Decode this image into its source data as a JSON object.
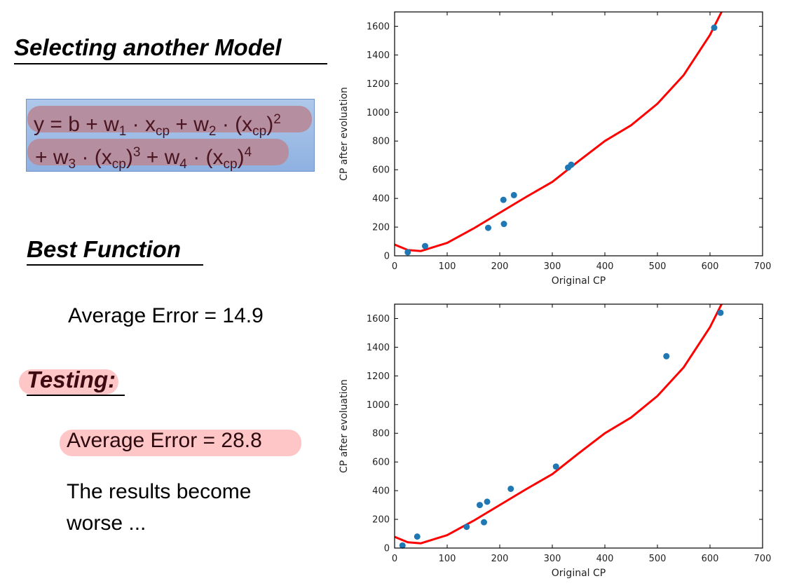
{
  "left": {
    "heading_model": "Selecting another Model",
    "formula": {
      "line1": {
        "y": "y = b + w",
        "s1": "1",
        "dot1": " · x",
        "s2": "cp",
        "plus2": " + w",
        "s3": "2",
        "dot2": " · (x",
        "s4": "cp",
        "close2": ")",
        "p2": "2"
      },
      "line2": {
        "plus3": "+ w",
        "s5": "3",
        "dot3": " · (x",
        "s6": "cp",
        "close3": ")",
        "p3": "3",
        "plus4": " + w",
        "s7": "4",
        "dot4": " · (x",
        "s8": "cp",
        "close4": ")",
        "p4": "4"
      }
    },
    "heading_best": "Best Function",
    "avg_error_train": "Average Error = 14.9",
    "heading_testing": "Testing:",
    "avg_error_test": "Average Error = 28.8",
    "result_line1": "The results become",
    "result_line2": "worse ..."
  },
  "chart_data": [
    {
      "type": "scatter",
      "title": "",
      "xlabel": "Original CP",
      "ylabel": "CP after evoluation",
      "xlim": [
        0,
        700
      ],
      "ylim": [
        0,
        1700
      ],
      "xticks": [
        0,
        100,
        200,
        300,
        400,
        500,
        600,
        700
      ],
      "yticks": [
        0,
        200,
        400,
        600,
        800,
        1000,
        1200,
        1400,
        1600
      ],
      "grid": false,
      "points": [
        [
          25,
          25
        ],
        [
          58,
          68
        ],
        [
          178,
          195
        ],
        [
          207,
          390
        ],
        [
          208,
          222
        ],
        [
          227,
          423
        ],
        [
          330,
          615
        ],
        [
          336,
          635
        ],
        [
          608,
          1590
        ]
      ],
      "curve": {
        "model": "b + w1*x + w2*x^2 + w3*x^3 + w4*x^4",
        "x": [
          0,
          25,
          50,
          100,
          150,
          200,
          250,
          300,
          350,
          400,
          450,
          500,
          550,
          600,
          622
        ],
        "y": [
          78,
          40,
          33,
          90,
          190,
          300,
          410,
          515,
          660,
          800,
          910,
          1060,
          1260,
          1540,
          1700
        ]
      },
      "colors": {
        "points": "#1f77b4",
        "curve": "#ff0000"
      }
    },
    {
      "type": "scatter",
      "title": "",
      "xlabel": "Original CP",
      "ylabel": "CP after evoluation",
      "xlim": [
        0,
        700
      ],
      "ylim": [
        0,
        1700
      ],
      "xticks": [
        0,
        100,
        200,
        300,
        400,
        500,
        600,
        700
      ],
      "yticks": [
        0,
        200,
        400,
        600,
        800,
        1000,
        1200,
        1400,
        1600
      ],
      "grid": false,
      "points": [
        [
          15,
          18
        ],
        [
          43,
          80
        ],
        [
          137,
          148
        ],
        [
          162,
          300
        ],
        [
          170,
          180
        ],
        [
          176,
          323
        ],
        [
          221,
          413
        ],
        [
          307,
          568
        ],
        [
          517,
          1337
        ],
        [
          620,
          1640
        ]
      ],
      "curve": {
        "model": "b + w1*x + w2*x^2 + w3*x^3 + w4*x^4",
        "x": [
          0,
          25,
          50,
          100,
          150,
          200,
          250,
          300,
          350,
          400,
          450,
          500,
          550,
          600,
          622
        ],
        "y": [
          78,
          40,
          33,
          90,
          190,
          300,
          410,
          515,
          660,
          800,
          910,
          1060,
          1260,
          1540,
          1700
        ]
      },
      "colors": {
        "points": "#1f77b4",
        "curve": "#ff0000"
      }
    }
  ]
}
